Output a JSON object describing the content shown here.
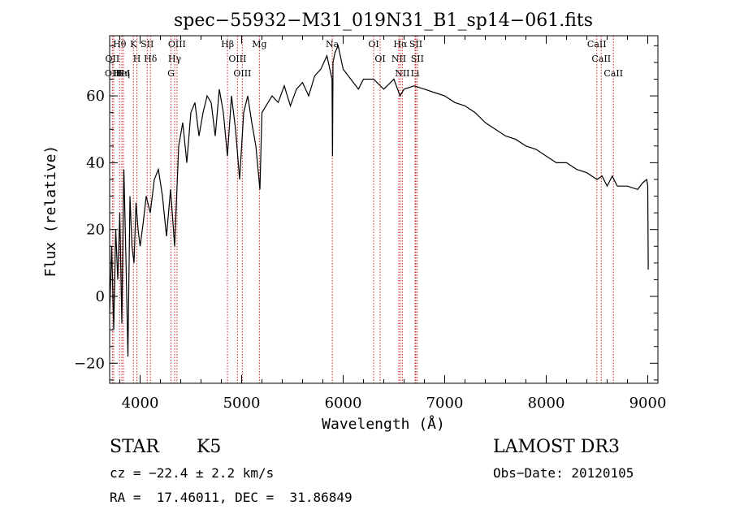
{
  "chart_data": {
    "type": "line",
    "title": "spec−55932−M31_019N31_B1_sp14−061.fits",
    "xlabel": "Wavelength (Å)",
    "ylabel": "Flux (relative)",
    "xlim": [
      3700,
      9100
    ],
    "ylim": [
      -26,
      78
    ],
    "xticks": [
      4000,
      5000,
      6000,
      7000,
      8000,
      9000
    ],
    "yticks": [
      -20,
      0,
      20,
      40,
      60
    ],
    "colors": {
      "spectrum": "#000000",
      "lines": "#cc2222"
    },
    "spectrum": {
      "name": "flux",
      "x": [
        3700,
        3720,
        3740,
        3760,
        3780,
        3800,
        3820,
        3840,
        3860,
        3880,
        3900,
        3920,
        3940,
        3960,
        3980,
        4000,
        4030,
        4060,
        4100,
        4140,
        4180,
        4220,
        4260,
        4300,
        4340,
        4380,
        4420,
        4460,
        4500,
        4540,
        4580,
        4620,
        4660,
        4700,
        4740,
        4780,
        4820,
        4860,
        4900,
        4940,
        4980,
        5020,
        5060,
        5100,
        5140,
        5180,
        5200,
        5240,
        5300,
        5360,
        5420,
        5480,
        5540,
        5600,
        5660,
        5720,
        5780,
        5840,
        5890,
        5895,
        5900,
        5920,
        5950,
        6000,
        6050,
        6100,
        6150,
        6200,
        6300,
        6400,
        6500,
        6560,
        6600,
        6700,
        6800,
        6900,
        7000,
        7100,
        7200,
        7300,
        7400,
        7500,
        7600,
        7700,
        7800,
        7900,
        8000,
        8100,
        8200,
        8300,
        8400,
        8500,
        8550,
        8600,
        8650,
        8700,
        8800,
        8900,
        8950,
        8990,
        9000,
        9005
      ],
      "y": [
        -5,
        15,
        -10,
        20,
        5,
        25,
        -8,
        38,
        12,
        -18,
        30,
        15,
        10,
        28,
        20,
        15,
        22,
        30,
        25,
        35,
        38,
        30,
        18,
        32,
        15,
        45,
        52,
        40,
        55,
        58,
        48,
        55,
        60,
        58,
        48,
        62,
        55,
        42,
        60,
        50,
        35,
        55,
        60,
        52,
        45,
        32,
        55,
        57,
        60,
        58,
        63,
        57,
        62,
        64,
        60,
        66,
        68,
        72,
        65,
        42,
        70,
        73,
        75,
        68,
        66,
        64,
        62,
        65,
        65,
        62,
        65,
        60,
        62,
        63,
        62,
        61,
        60,
        58,
        57,
        55,
        52,
        50,
        48,
        47,
        45,
        44,
        42,
        40,
        40,
        38,
        37,
        35,
        36,
        33,
        36,
        33,
        33,
        32,
        34,
        35,
        33,
        8
      ]
    },
    "lines": [
      {
        "label": "Hθ",
        "x": 3798
      },
      {
        "label": "OII",
        "x": 3727
      },
      {
        "label": "OIII",
        "x": 3740
      },
      {
        "label": "HeI",
        "x": 3820
      },
      {
        "label": "Hη",
        "x": 3835
      },
      {
        "label": "K",
        "x": 3934
      },
      {
        "label": "H",
        "x": 3968
      },
      {
        "label": "SII",
        "x": 4070
      },
      {
        "label": "Hδ",
        "x": 4102
      },
      {
        "label": "OIII",
        "x": 4363
      },
      {
        "label": "Hγ",
        "x": 4340
      },
      {
        "label": "G",
        "x": 4304
      },
      {
        "label": "Hβ",
        "x": 4861
      },
      {
        "label": "OIII",
        "x": 4959
      },
      {
        "label": "OIII",
        "x": 5007
      },
      {
        "label": "Mg",
        "x": 5175
      },
      {
        "label": "Na",
        "x": 5893
      },
      {
        "label": "OI",
        "x": 6300
      },
      {
        "label": "OI",
        "x": 6364
      },
      {
        "label": "Hα",
        "x": 6563
      },
      {
        "label": "NII",
        "x": 6548
      },
      {
        "label": "NII",
        "x": 6583
      },
      {
        "label": "SII",
        "x": 6716
      },
      {
        "label": "SII",
        "x": 6731
      },
      {
        "label": "Li",
        "x": 6708
      },
      {
        "label": "CaII",
        "x": 8498
      },
      {
        "label": "CaII",
        "x": 8542
      },
      {
        "label": "CaII",
        "x": 8662
      }
    ]
  },
  "info": {
    "object_class": "STAR",
    "subclass": "K5",
    "survey": "LAMOST DR3",
    "cz": "cz = −22.4 ± 2.2 km/s",
    "obs_date": "Obs−Date: 20120105",
    "coords": "RA =  17.46011, DEC =  31.86849"
  }
}
